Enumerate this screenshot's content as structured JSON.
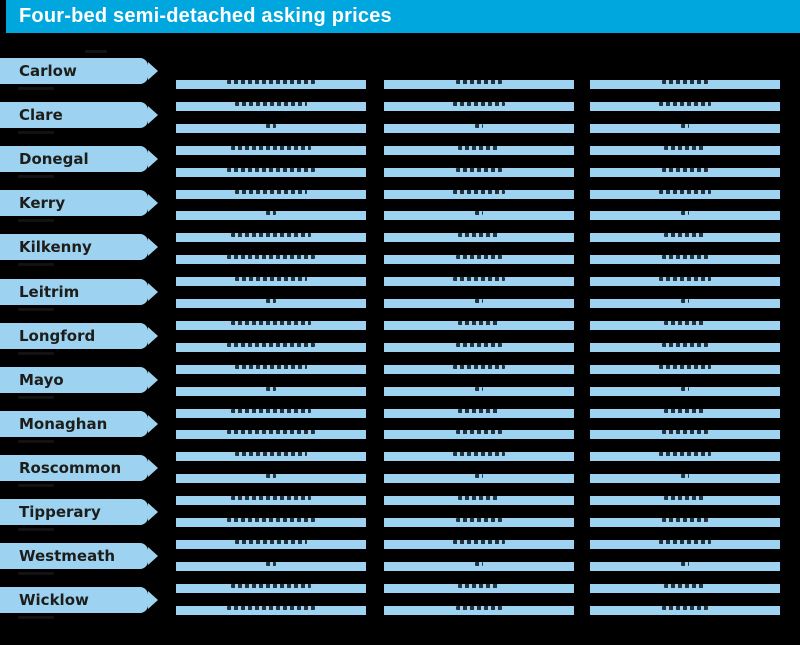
{
  "title_bar": {
    "title": "Four-bed semi-detached asking prices"
  },
  "table": {
    "counties": [
      "Carlow",
      "Clare",
      "Donegal",
      "Kerry",
      "Kilkenny",
      "Leitrim",
      "Longford",
      "Mayo",
      "Monaghan",
      "Roscommon",
      "Tipperary",
      "Westmeath",
      "Wicklow"
    ],
    "data_columns": 3,
    "bar_rows_per_column": 25
  },
  "colors": {
    "titlebar_bg": "#00A7DF",
    "title_text": "#FFFFFF",
    "highlight_blue": "#9DD3F0",
    "background": "#000000",
    "label_text": "#1D1D1B"
  },
  "chart_data": {
    "type": "table",
    "title": "Four-bed semi-detached asking prices",
    "row_labels": [
      "Carlow",
      "Clare",
      "Donegal",
      "Kerry",
      "Kilkenny",
      "Leitrim",
      "Longford",
      "Mayo",
      "Monaghan",
      "Roscommon",
      "Tipperary",
      "Westmeath",
      "Wicklow"
    ],
    "data_columns": 3,
    "cell_values_visible": false
  }
}
